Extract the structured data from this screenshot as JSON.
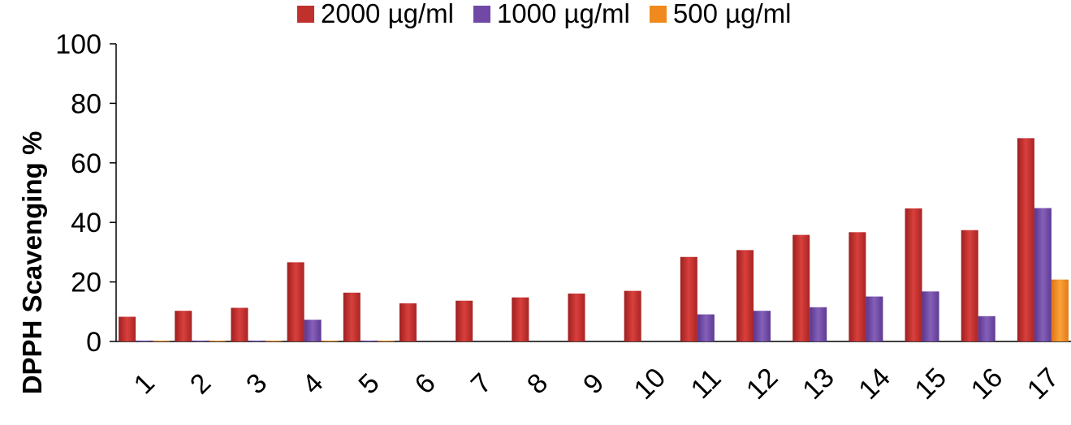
{
  "chart_data": {
    "type": "bar",
    "title": "",
    "xlabel": "",
    "ylabel": "DPPH Scavenging %",
    "ylim": [
      0,
      100
    ],
    "yticks": [
      "0",
      "20",
      "40",
      "60",
      "80",
      "100"
    ],
    "grid": false,
    "legend_position": "top",
    "categories": [
      "1",
      "2",
      "3",
      "4",
      "5",
      "6",
      "7",
      "8",
      "9",
      "10",
      "11",
      "12",
      "13",
      "14",
      "15",
      "16",
      "17"
    ],
    "series": [
      {
        "name": "2000 µg/ml",
        "color": "#c0302d",
        "values": [
          8.3,
          10.3,
          11.3,
          26.6,
          16.4,
          12.8,
          13.7,
          14.8,
          16.1,
          17.0,
          28.4,
          30.7,
          35.8,
          36.7,
          44.7,
          37.4,
          68.3
        ]
      },
      {
        "name": "1000 µg/ml",
        "color": "#7148a6",
        "values": [
          0.3,
          0.3,
          0.3,
          7.3,
          0.3,
          0,
          0,
          0,
          0,
          0,
          9.1,
          10.3,
          11.5,
          15.1,
          16.8,
          8.5,
          44.8
        ]
      },
      {
        "name": "500 µg/ml",
        "color": "#f08a1c",
        "values": [
          0.3,
          0.3,
          0.3,
          0.3,
          0.3,
          0,
          0,
          0,
          0,
          0,
          0,
          0,
          0,
          0,
          0,
          0,
          20.8
        ]
      }
    ]
  }
}
